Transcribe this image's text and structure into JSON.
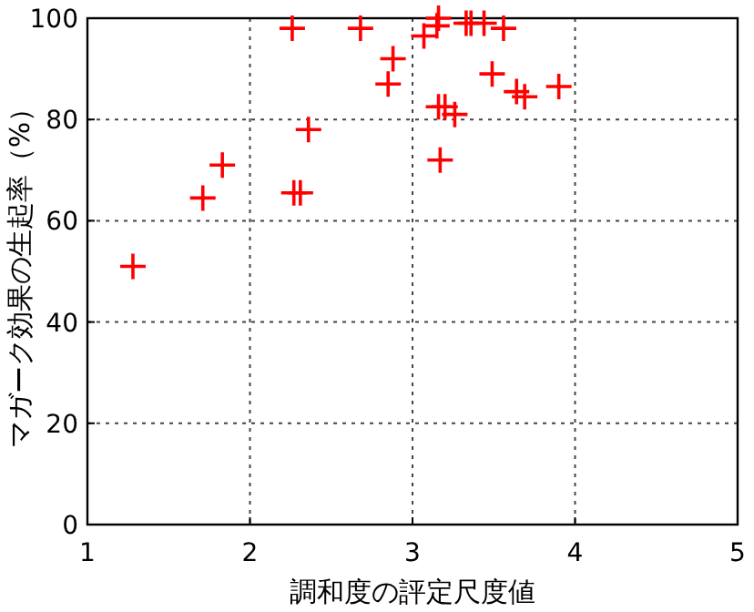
{
  "chart_data": {
    "type": "scatter",
    "xlabel": "調和度の評定尺度値",
    "ylabel": "マガーク効果の生起率（%）",
    "x": [
      1.28,
      1.71,
      1.83,
      2.26,
      2.27,
      2.31,
      2.36,
      2.68,
      2.88,
      2.85,
      3.07,
      3.15,
      3.16,
      3.33,
      3.36,
      3.44,
      3.56,
      3.49,
      3.16,
      3.2,
      3.26,
      3.17,
      3.64,
      3.69,
      3.9
    ],
    "series": [
      {
        "color": "#ff0000",
        "values": [
          51,
          64.5,
          71,
          98,
          65.5,
          65.5,
          78,
          98,
          92,
          87,
          96.5,
          98.5,
          100,
          99,
          99,
          99,
          98,
          89,
          82.5,
          82.5,
          81,
          72,
          85.5,
          84.5,
          86.5
        ]
      }
    ],
    "xlim": [
      1,
      5
    ],
    "ylim": [
      0,
      100
    ],
    "xticks": [
      1,
      2,
      3,
      4,
      5
    ],
    "yticks": [
      0,
      20,
      40,
      60,
      80,
      100
    ],
    "grid": true,
    "marker": "cross"
  }
}
